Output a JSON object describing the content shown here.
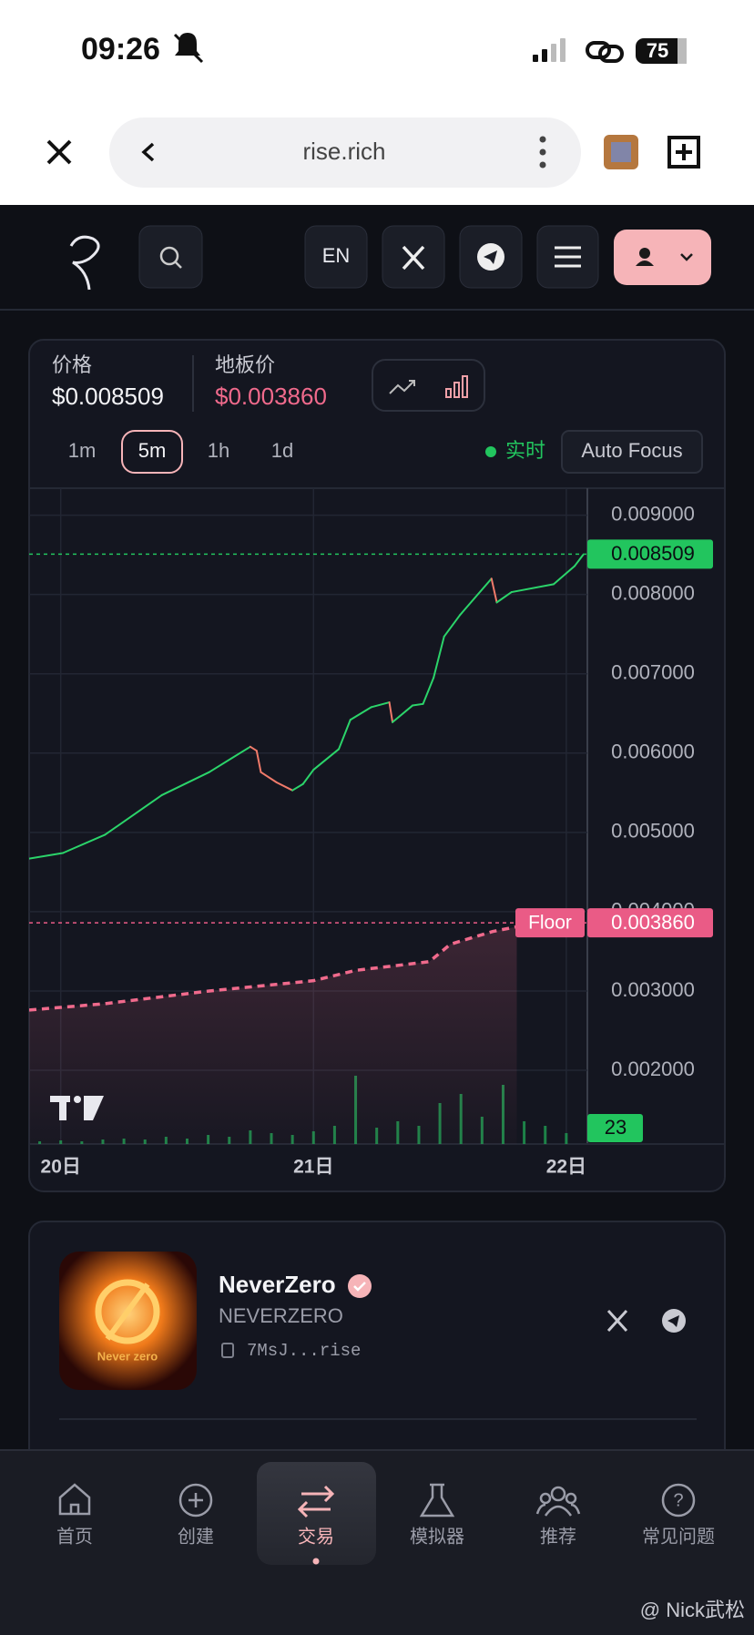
{
  "status_bar": {
    "time": "09:26",
    "battery": "75"
  },
  "browser": {
    "url": "rise.rich"
  },
  "nav": {
    "language": "EN"
  },
  "price_panel": {
    "price_label": "价格",
    "price": "$0.008509",
    "floor_label": "地板价",
    "floor": "$0.003860",
    "intervals": [
      "1m",
      "5m",
      "1h",
      "1d"
    ],
    "live": "实时",
    "auto_focus": "Auto Focus"
  },
  "chart": {
    "xlim": [
      -3,
      50
    ],
    "ylim": [
      0.00107,
      0.00934
    ],
    "xticks": [
      {
        "value": 0,
        "label": "20日"
      },
      {
        "value": 24,
        "label": "21日"
      },
      {
        "value": 48,
        "label": "22日"
      }
    ],
    "yticks": [
      {
        "value": 0.009,
        "label": "0.009000"
      },
      {
        "value": 0.008,
        "label": "0.008000"
      },
      {
        "value": 0.007,
        "label": "0.007000"
      },
      {
        "value": 0.006,
        "label": "0.006000"
      },
      {
        "value": 0.005,
        "label": "0.005000"
      },
      {
        "value": 0.004,
        "label": "0.004000"
      },
      {
        "value": 0.003,
        "label": "0.003000"
      },
      {
        "value": 0.002,
        "label": "0.002000"
      }
    ],
    "grid": true,
    "price_series": {
      "up_color": "#2bd46a",
      "down_color": "#f07a6a",
      "x": [
        -3,
        0.2,
        4.2,
        9.6,
        14.1,
        18,
        18.6,
        19,
        20.5,
        22,
        23,
        24,
        26.4,
        27.5,
        29.5,
        31.2,
        31.5,
        33.4,
        34.4,
        35.4,
        36.4,
        37.9,
        40.9,
        41.4,
        42.8,
        46.8,
        48.8,
        49.6
      ],
      "values": [
        0.00467,
        0.00474,
        0.00497,
        0.00547,
        0.00576,
        0.00608,
        0.00603,
        0.00576,
        0.00563,
        0.00553,
        0.00561,
        0.00579,
        0.00605,
        0.00642,
        0.00658,
        0.00664,
        0.00639,
        0.0066,
        0.00662,
        0.00695,
        0.00747,
        0.00774,
        0.0082,
        0.0079,
        0.00803,
        0.00813,
        0.00836,
        0.0085
      ]
    },
    "floor_series": {
      "color": "#f06a8c",
      "x": [
        -3,
        4.2,
        14.1,
        24,
        28,
        35,
        37,
        41,
        43.3
      ],
      "values": [
        0.00276,
        0.00284,
        0.003,
        0.00313,
        0.00326,
        0.00337,
        0.00359,
        0.00375,
        0.00381
      ]
    },
    "price": {
      "value": 0.008509,
      "label": "0.008509",
      "color": "#22c55e"
    },
    "floor": {
      "value": 0.00386,
      "label": "0.003860",
      "tag": "Floor",
      "color": "#ea5b86"
    },
    "volume": {
      "color": "#1f9d52",
      "ylim": [
        0,
        100
      ],
      "label": "23",
      "x": [
        -2,
        0,
        2,
        4,
        6,
        8,
        10,
        12,
        14,
        16,
        18,
        20,
        22,
        24,
        26,
        28,
        30,
        32,
        34,
        36,
        38,
        40,
        42,
        44,
        46,
        48
      ],
      "values": [
        3,
        4,
        3,
        5,
        6,
        5,
        8,
        6,
        10,
        8,
        15,
        12,
        10,
        14,
        20,
        75,
        18,
        25,
        20,
        45,
        55,
        30,
        65,
        25,
        20,
        12
      ]
    }
  },
  "token": {
    "name": "NeverZero",
    "symbol": "NEVERZERO",
    "address": "7MsJ...rise",
    "logo_text": "Never zero"
  },
  "tabs": [
    "首页",
    "创建",
    "交易",
    "模拟器",
    "推荐",
    "常见问题"
  ],
  "watermark": "@ Nick武松"
}
